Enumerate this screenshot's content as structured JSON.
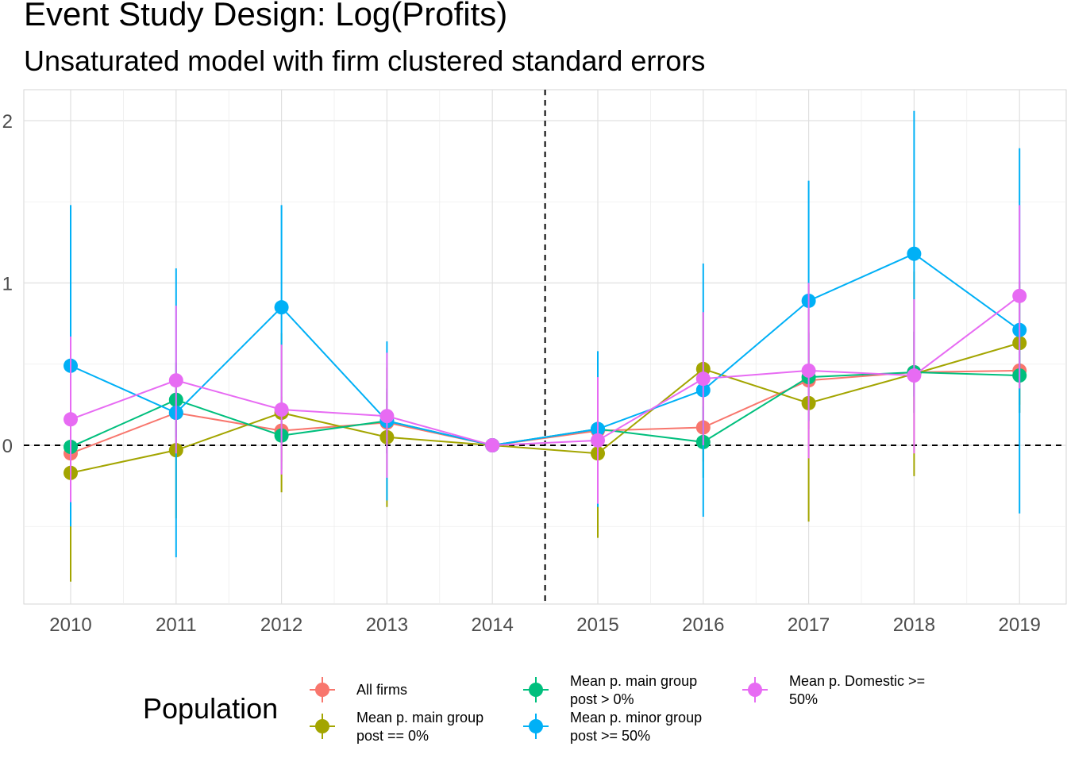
{
  "chart_data": {
    "type": "line",
    "title": "Event Study Design: Log(Profits)",
    "subtitle": "Unsaturated model with firm clustered standard errors",
    "categories": [
      "2010",
      "2011",
      "2012",
      "2013",
      "2014",
      "2015",
      "2016",
      "2017",
      "2018",
      "2019"
    ],
    "ylim": [
      -0.98,
      2.18
    ],
    "yticks": [
      0,
      1,
      2
    ],
    "ytick_labels": [
      "0",
      "1",
      "2"
    ],
    "reference_lines": {
      "y": 0,
      "x_between": [
        "2014",
        "2015"
      ],
      "style": "dashed"
    },
    "grid": true,
    "legend": {
      "title": "Population",
      "position": "bottom"
    },
    "series": [
      {
        "name": "All firms",
        "color": "#F8766D",
        "values": [
          -0.05,
          0.2,
          0.09,
          0.14,
          0.0,
          0.09,
          0.11,
          0.4,
          0.45,
          0.46
        ],
        "ci_low": [
          -0.3,
          0.0,
          -0.1,
          -0.05,
          0.0,
          -0.1,
          -0.1,
          0.1,
          0.2,
          0.2
        ],
        "ci_high": [
          0.2,
          0.4,
          0.3,
          0.33,
          0.0,
          0.28,
          0.32,
          0.7,
          0.7,
          0.72
        ]
      },
      {
        "name": "Mean p. main group post == 0%",
        "color": "#A3A500",
        "values": [
          -0.17,
          -0.03,
          0.2,
          0.05,
          0.0,
          -0.05,
          0.47,
          0.26,
          0.44,
          0.63
        ],
        "ci_low": [
          -0.84,
          -0.45,
          -0.29,
          -0.38,
          0.0,
          -0.57,
          0.12,
          -0.47,
          -0.19,
          0.25
        ],
        "ci_high": [
          0.5,
          0.39,
          0.69,
          0.48,
          0.0,
          0.47,
          0.82,
          0.99,
          1.07,
          1.01
        ]
      },
      {
        "name": "Mean p. main group post > 0%",
        "color": "#00BF7D",
        "values": [
          -0.01,
          0.28,
          0.06,
          0.15,
          0.0,
          0.1,
          0.02,
          0.42,
          0.45,
          0.43
        ],
        "ci_low": [
          -0.25,
          0.05,
          -0.15,
          -0.05,
          0.0,
          -0.1,
          -0.2,
          0.15,
          0.2,
          0.2
        ],
        "ci_high": [
          0.23,
          0.51,
          0.27,
          0.35,
          0.0,
          0.3,
          0.24,
          0.69,
          0.7,
          0.66
        ]
      },
      {
        "name": "Mean p. minor group post >= 50%",
        "color": "#00B0F6",
        "values": [
          0.49,
          0.2,
          0.85,
          0.15,
          0.0,
          0.1,
          0.34,
          0.89,
          1.18,
          0.71
        ],
        "ci_low": [
          -0.5,
          -0.69,
          0.22,
          -0.34,
          0.0,
          -0.38,
          -0.44,
          0.15,
          0.3,
          -0.42
        ],
        "ci_high": [
          1.48,
          1.09,
          1.48,
          0.64,
          0.0,
          0.58,
          1.12,
          1.63,
          2.06,
          1.83
        ]
      },
      {
        "name": "Mean p. Domestic >= 50%",
        "color": "#E76BF3",
        "values": [
          0.16,
          0.4,
          0.22,
          0.18,
          0.0,
          0.03,
          0.41,
          0.46,
          0.43,
          0.92
        ],
        "ci_low": [
          -0.35,
          -0.05,
          -0.18,
          -0.2,
          0.0,
          -0.36,
          0.0,
          -0.08,
          -0.05,
          0.35
        ],
        "ci_high": [
          0.67,
          0.86,
          0.62,
          0.57,
          0.0,
          0.42,
          0.82,
          1.0,
          0.9,
          1.48
        ]
      }
    ]
  },
  "legend_labels": [
    [
      "All firms"
    ],
    [
      "Mean p. main group",
      "post == 0%"
    ],
    [
      "Mean p. main group",
      "post > 0%"
    ],
    [
      "Mean p. minor group",
      "post >= 50%"
    ],
    [
      "Mean p. Domestic >=",
      "50%"
    ]
  ]
}
